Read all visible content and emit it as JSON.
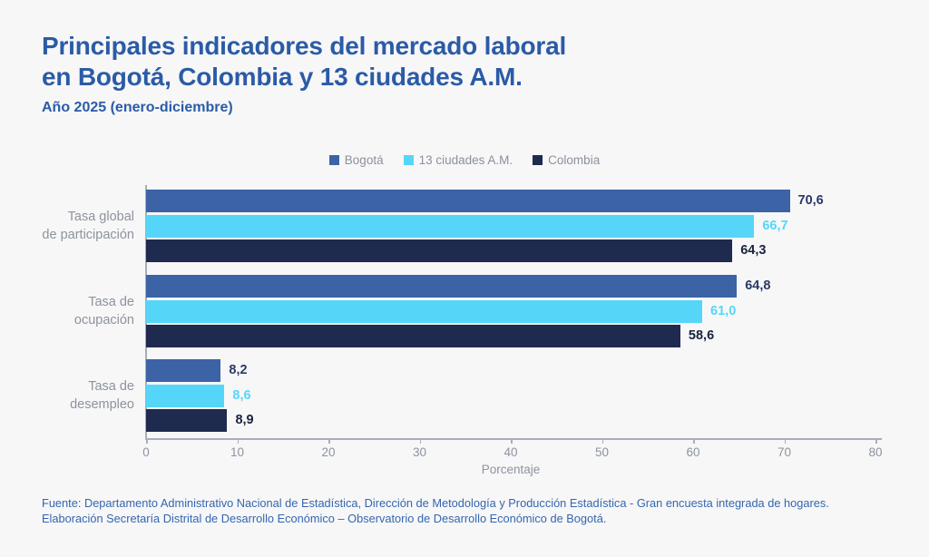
{
  "header": {
    "title_line1": "Principales indicadores del mercado laboral",
    "title_line2": "en Bogotá, Colombia y 13 ciudades A.M.",
    "subtitle": "Año 2025 (enero-diciembre)"
  },
  "legend": [
    {
      "label": "Bogotá",
      "color": "#3c63a5"
    },
    {
      "label": "13 ciudades A.M.",
      "color": "#55d6f9"
    },
    {
      "label": "Colombia",
      "color": "#1f2a4f"
    }
  ],
  "chart_data": {
    "type": "bar",
    "orientation": "horizontal",
    "categories": [
      "Tasa global de participación",
      "Tasa de ocupación",
      "Tasa de desempleo"
    ],
    "categories_lines": [
      [
        "Tasa global",
        "de participación"
      ],
      [
        "Tasa de",
        "ocupación"
      ],
      [
        "Tasa de",
        "desempleo"
      ]
    ],
    "series": [
      {
        "name": "Bogotá",
        "color": "#3c63a5",
        "label_color": "#2b3a66",
        "values": [
          70.6,
          64.8,
          8.2
        ],
        "labels": [
          "70,6",
          "64,8",
          "8,2"
        ]
      },
      {
        "name": "13 ciudades A.M.",
        "color": "#55d6f9",
        "label_color": "#55d6f9",
        "values": [
          66.7,
          61.0,
          8.6
        ],
        "labels": [
          "66,7",
          "61,0",
          "8,6"
        ]
      },
      {
        "name": "Colombia",
        "color": "#1f2a4f",
        "label_color": "#19233f",
        "values": [
          64.3,
          58.6,
          8.9
        ],
        "labels": [
          "64,3",
          "58,6",
          "8,9"
        ]
      }
    ],
    "xlabel": "Porcentaje",
    "xlim": [
      0,
      80
    ],
    "xticks": [
      0,
      10,
      20,
      30,
      40,
      50,
      60,
      70,
      80
    ],
    "grid": false,
    "legend_position": "top-center"
  },
  "footer": {
    "line1": "Fuente: Departamento Administrativo Nacional de Estadística, Dirección de Metodología y Producción Estadística - Gran encuesta integrada de hogares.",
    "line2": "Elaboración Secretaría Distrital de Desarrollo Económico – Observatorio de Desarrollo Económico de Bogotá."
  },
  "colors": {
    "background": "#f7f7f8",
    "title": "#2b5ba6",
    "footer_text": "#3566ae",
    "axis": "#a9afb8",
    "muted_text": "#8d939d"
  }
}
